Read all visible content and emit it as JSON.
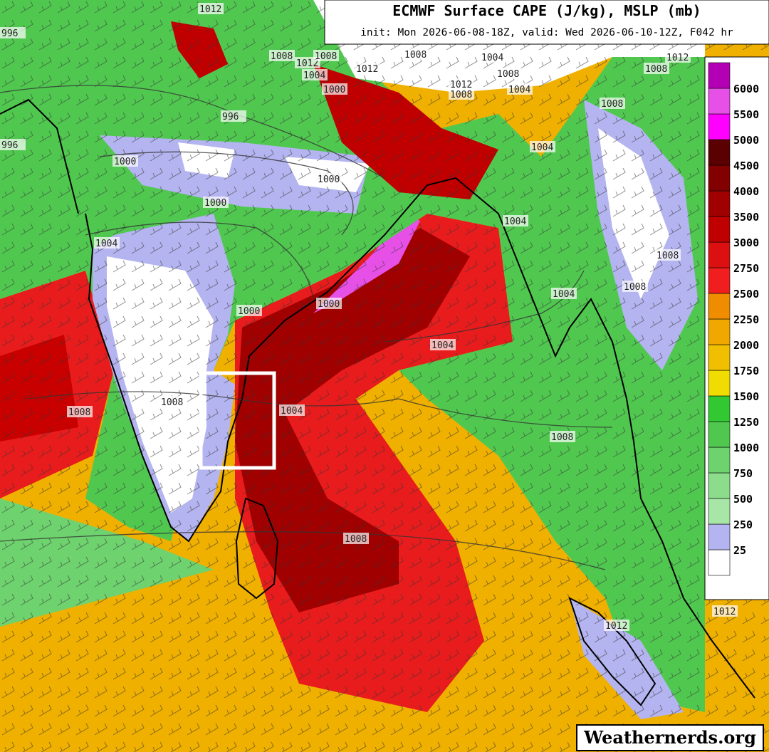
{
  "header": {
    "title": "ECMWF Surface CAPE (J/kg), MSLP (mb)",
    "subtitle": "init: Mon 2026-06-08-18Z, valid: Wed 2026-06-10-12Z, F042 hr"
  },
  "legend": {
    "levels": [
      25,
      250,
      500,
      750,
      1000,
      1250,
      1500,
      1750,
      2000,
      2250,
      2500,
      2750,
      3000,
      3500,
      4000,
      4500,
      5000,
      5500,
      6000
    ],
    "colors": [
      "#ffffff",
      "#b4b4f0",
      "#a8e6a8",
      "#8cdc8c",
      "#6ed26e",
      "#50c850",
      "#32c832",
      "#f0dc00",
      "#f0c000",
      "#f0a800",
      "#f08c00",
      "#f01e1e",
      "#dc1010",
      "#c00000",
      "#a00000",
      "#820000",
      "#5a0000",
      "#ff00ff",
      "#e650e6",
      "#b400b4"
    ]
  },
  "isobar_labels": [
    "996",
    "1012",
    "1008",
    "1012",
    "1008",
    "1004",
    "1000",
    "1012",
    "996",
    "996",
    "1000",
    "1000",
    "1000",
    "1004",
    "1008",
    "1004",
    "1008",
    "1004",
    "1012",
    "1008",
    "1008",
    "1004",
    "1004",
    "1008",
    "1004",
    "1008",
    "1000",
    "1000",
    "1004",
    "1008",
    "1008",
    "1004",
    "1008",
    "1008",
    "1012",
    "1012",
    "1012",
    "1008"
  ],
  "watermark": "Weathernerds.org"
}
